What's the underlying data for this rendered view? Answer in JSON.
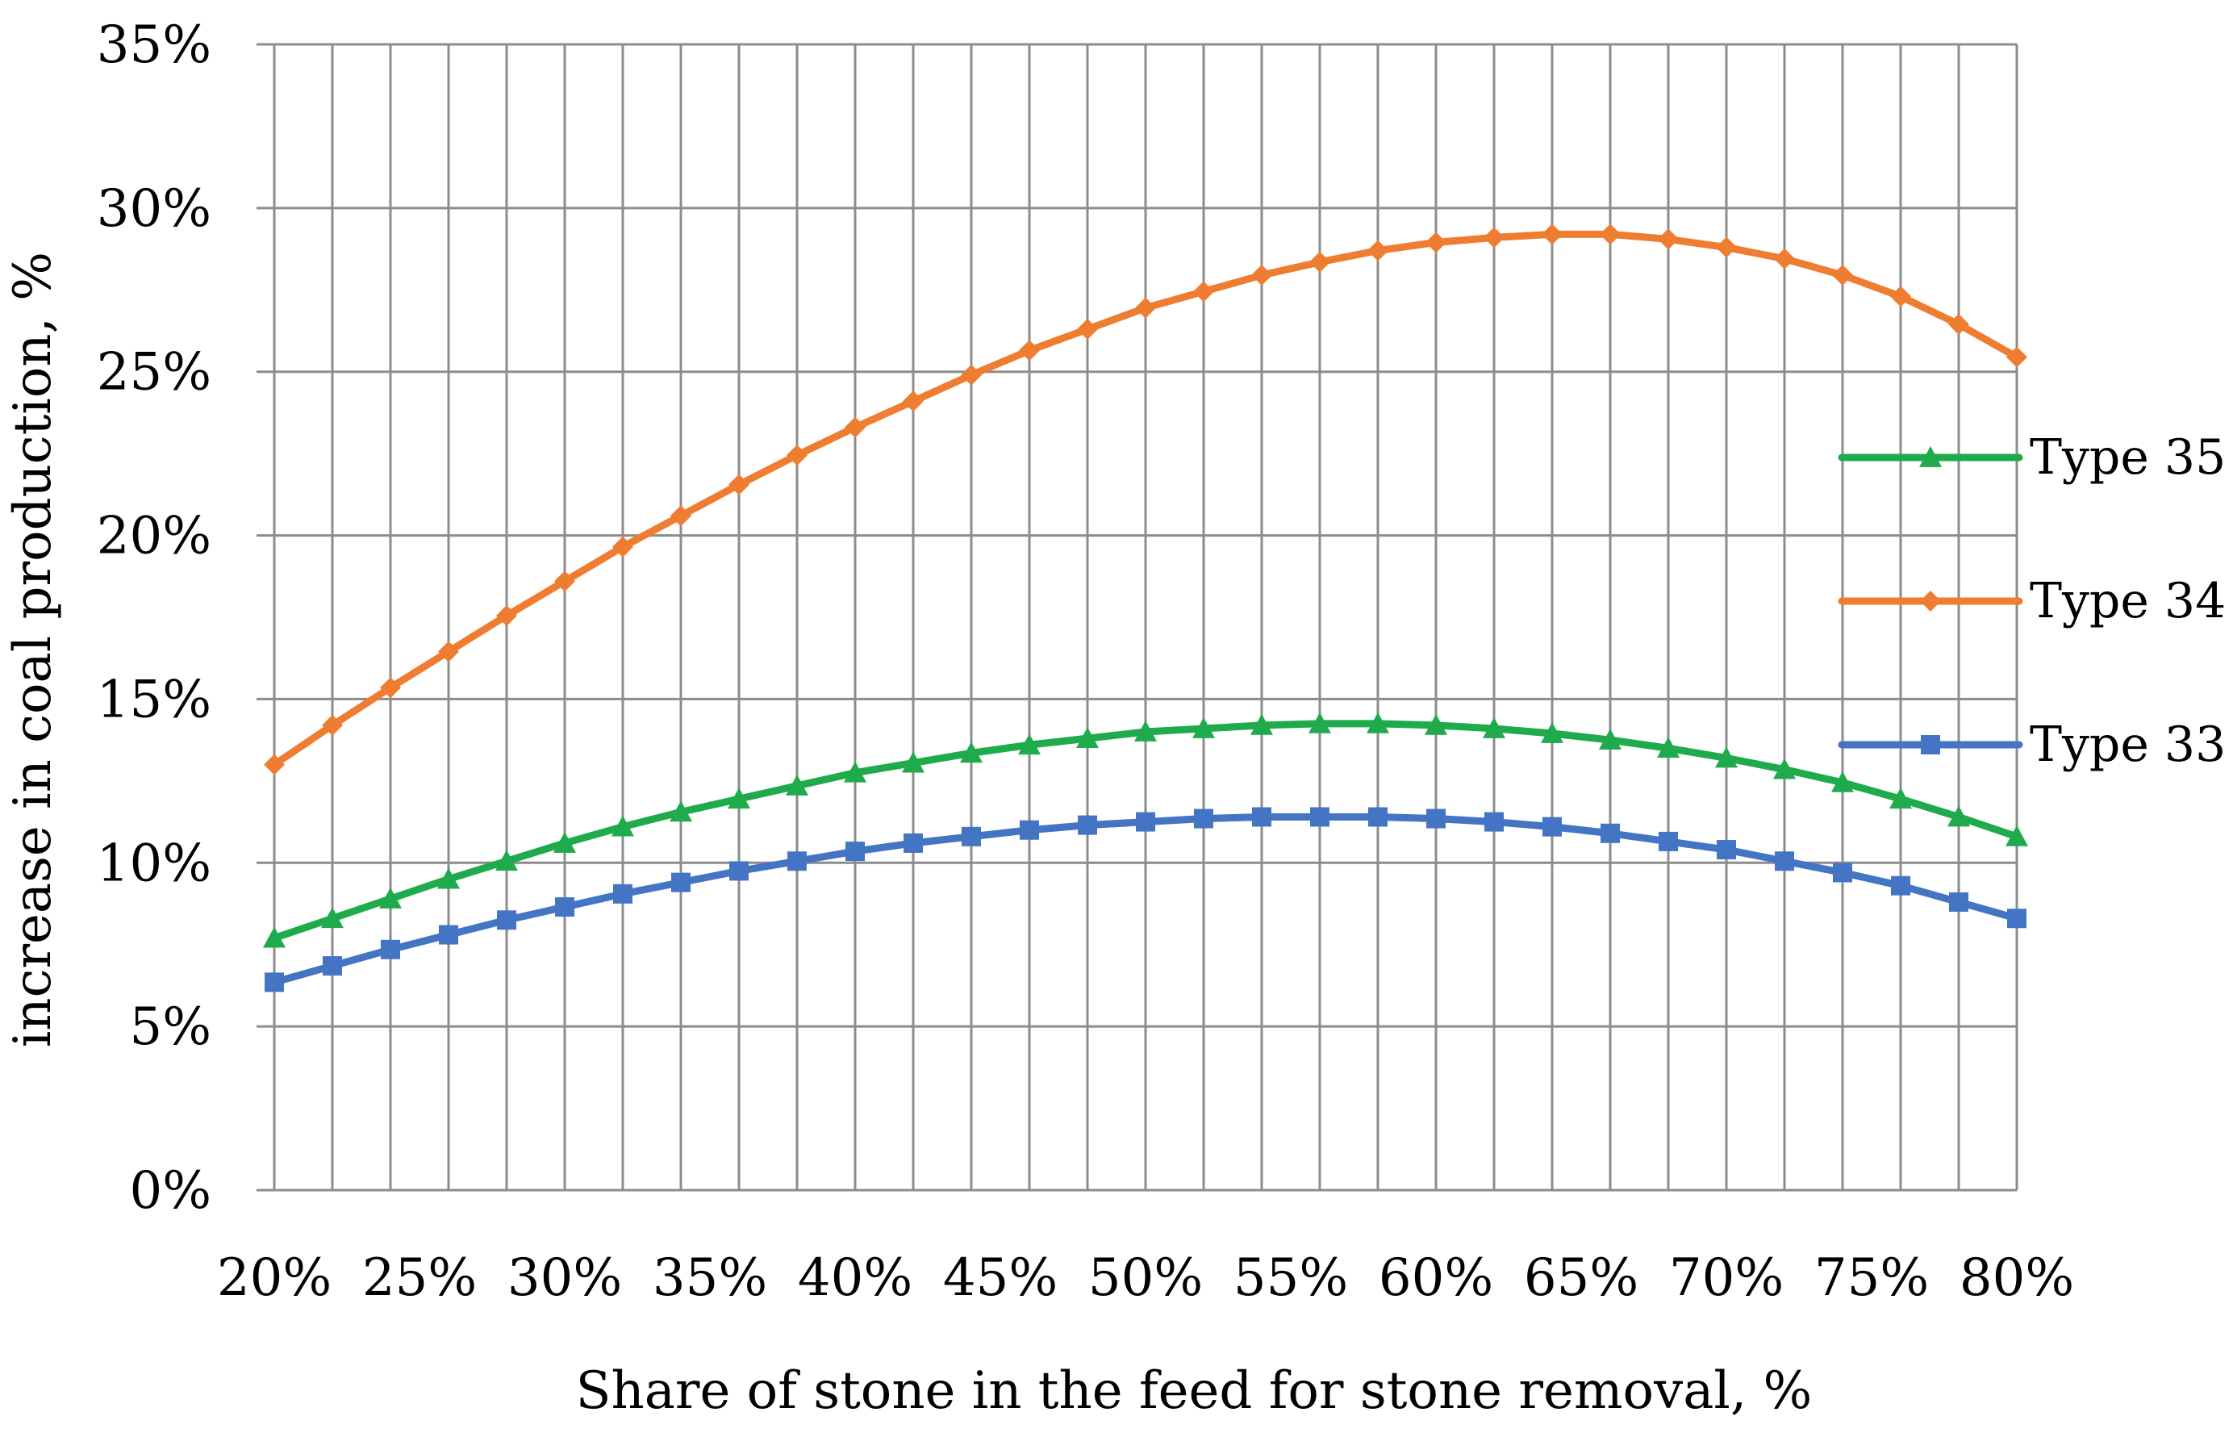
{
  "chart_data": {
    "type": "line",
    "title": "",
    "xlabel": "Share of stone in the feed for stone removal, %",
    "ylabel": "increase in coal production, %",
    "xlim": [
      20,
      80
    ],
    "ylim": [
      0,
      35
    ],
    "grid": true,
    "legend_position": "right",
    "x_ticks": [
      "20%",
      "25%",
      "30%",
      "35%",
      "40%",
      "45%",
      "50%",
      "55%",
      "60%",
      "65%",
      "70%",
      "75%",
      "80%"
    ],
    "y_ticks": [
      "0%",
      "5%",
      "10%",
      "15%",
      "20%",
      "25%",
      "30%",
      "35%"
    ],
    "x": [
      20,
      22,
      24,
      26,
      28,
      30,
      32,
      34,
      36,
      38,
      40,
      42,
      44,
      46,
      48,
      50,
      52,
      54,
      56,
      58,
      60,
      62,
      64,
      66,
      68,
      70,
      72,
      74,
      76,
      78,
      80
    ],
    "series": [
      {
        "name": "Type 35",
        "color": "#1fab4c",
        "marker": "triangle",
        "values": [
          7.7,
          8.3,
          8.9,
          9.5,
          10.05,
          10.6,
          11.1,
          11.55,
          11.95,
          12.35,
          12.75,
          13.05,
          13.35,
          13.6,
          13.8,
          14.0,
          14.1,
          14.2,
          14.25,
          14.25,
          14.2,
          14.1,
          13.95,
          13.75,
          13.5,
          13.2,
          12.85,
          12.45,
          11.95,
          11.4,
          10.8
        ]
      },
      {
        "name": "Type 34",
        "color": "#ee7d31",
        "marker": "diamond",
        "values": [
          13.0,
          14.2,
          15.35,
          16.45,
          17.55,
          18.6,
          19.65,
          20.6,
          21.55,
          22.45,
          23.3,
          24.1,
          24.9,
          25.65,
          26.3,
          26.95,
          27.45,
          27.95,
          28.35,
          28.7,
          28.95,
          29.1,
          29.2,
          29.2,
          29.05,
          28.8,
          28.45,
          27.95,
          27.3,
          26.45,
          25.45
        ]
      },
      {
        "name": "Type 33",
        "color": "#4474c4",
        "marker": "square",
        "values": [
          6.35,
          6.85,
          7.35,
          7.8,
          8.25,
          8.65,
          9.05,
          9.4,
          9.75,
          10.05,
          10.35,
          10.6,
          10.8,
          11.0,
          11.15,
          11.25,
          11.35,
          11.4,
          11.4,
          11.4,
          11.35,
          11.25,
          11.1,
          10.9,
          10.65,
          10.4,
          10.05,
          9.7,
          9.3,
          8.8,
          8.3
        ]
      }
    ]
  }
}
